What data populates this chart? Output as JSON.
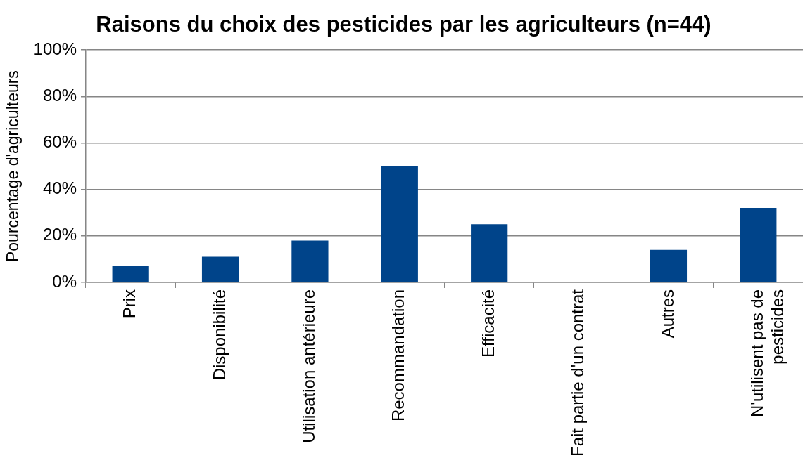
{
  "chart_data": {
    "type": "bar",
    "title": "Raisons du choix des pesticides par les agriculteurs (n=44)",
    "ylabel": "Pourcentage d'agriculteurs",
    "categories": [
      "Prix",
      "Disponibilité",
      "Utilisation antérieure",
      "Recommandation",
      "Efficacité",
      "Fait partie d'un contrat",
      "Autres",
      "N'utilisent pas de pesticides"
    ],
    "values": [
      7,
      11,
      18,
      50,
      25,
      0,
      14,
      32
    ],
    "color": "#00448a",
    "ylim": [
      0,
      100
    ],
    "yticks": [
      {
        "value": 0,
        "label": "0%"
      },
      {
        "value": 20,
        "label": "20%"
      },
      {
        "value": 40,
        "label": "40%"
      },
      {
        "value": 60,
        "label": "60%"
      },
      {
        "value": 80,
        "label": "80%"
      },
      {
        "value": 100,
        "label": "100%"
      }
    ],
    "grid": "y"
  }
}
